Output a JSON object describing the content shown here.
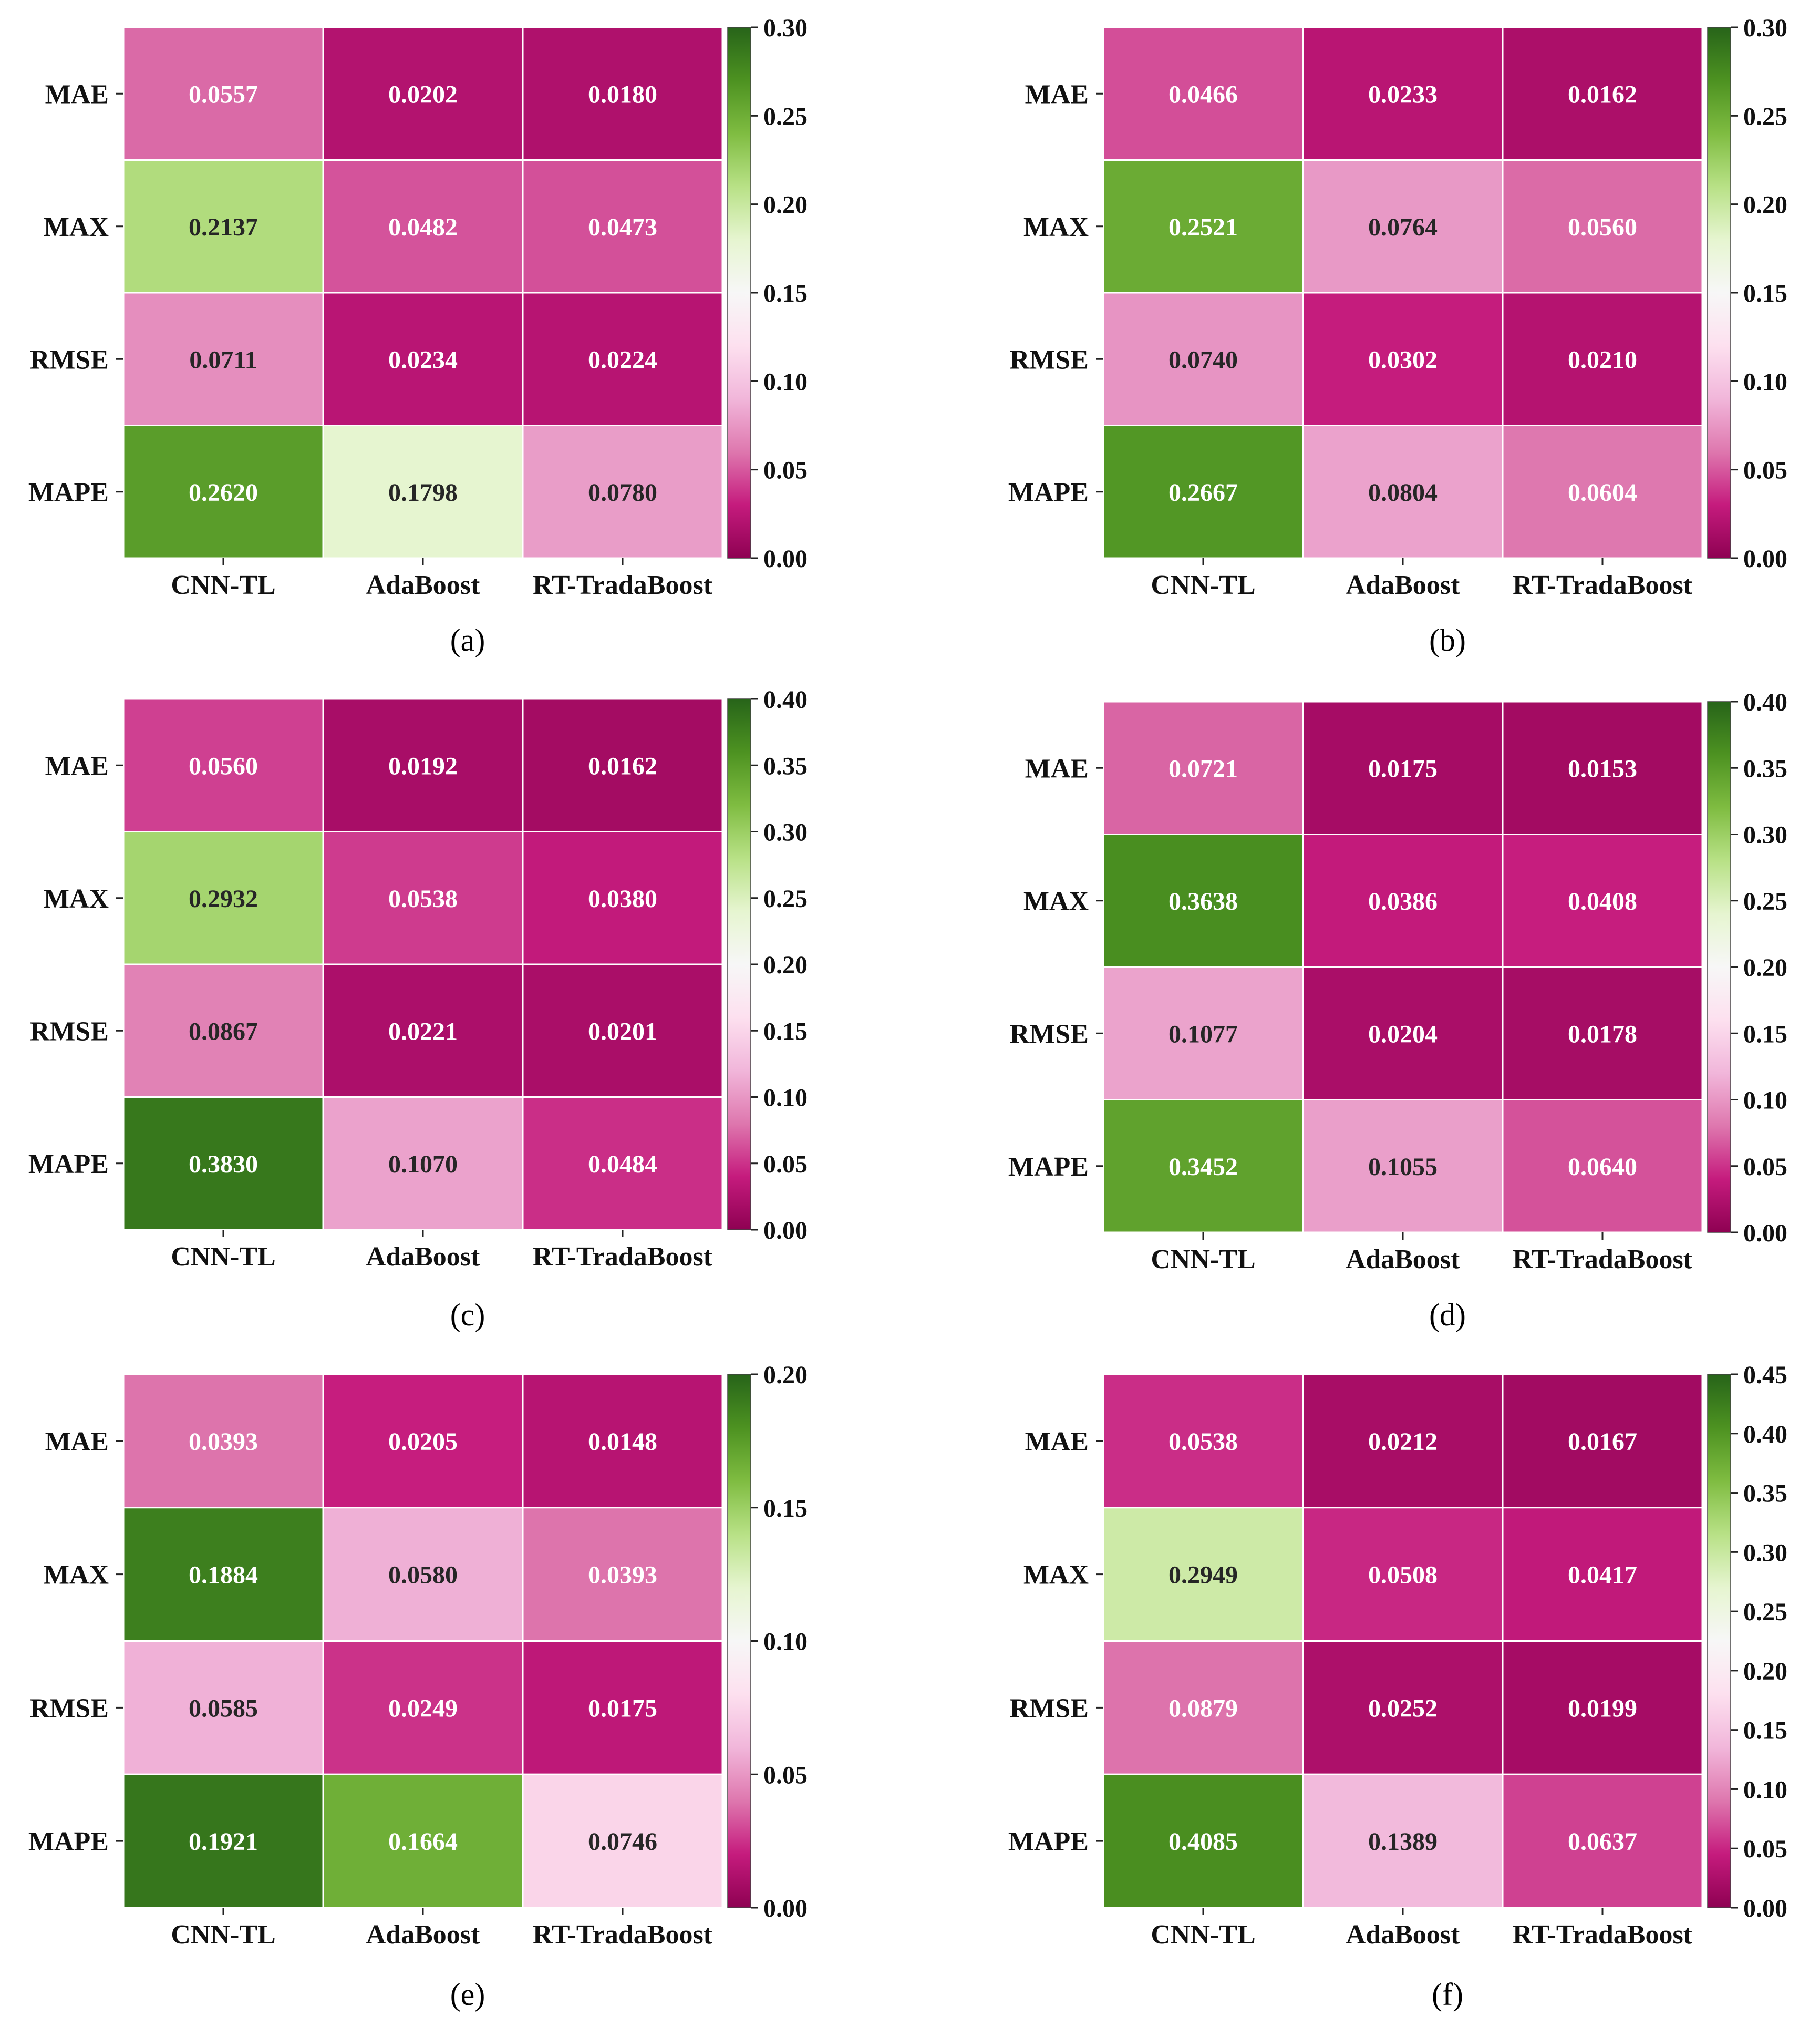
{
  "chart_data": [
    {
      "type": "heatmap",
      "panel_label": "(a)",
      "rows": [
        "MAE",
        "MAX",
        "RMSE",
        "MAPE"
      ],
      "columns": [
        "CNN-TL",
        "AdaBoost",
        "RT-TradaBoost"
      ],
      "values": [
        [
          0.0557,
          0.0202,
          0.018
        ],
        [
          0.2137,
          0.0482,
          0.0473
        ],
        [
          0.0711,
          0.0234,
          0.0224
        ],
        [
          0.262,
          0.1798,
          0.078
        ]
      ],
      "value_labels": [
        [
          "0.0557",
          "0.0202",
          "0.0180"
        ],
        [
          "0.2137",
          "0.0482",
          "0.0473"
        ],
        [
          "0.0711",
          "0.0234",
          "0.0224"
        ],
        [
          "0.2620",
          "0.1798",
          "0.0780"
        ]
      ],
      "colorbar": {
        "range": [
          0,
          0.3
        ],
        "ticks": [
          "0.00",
          "0.05",
          "0.10",
          "0.15",
          "0.20",
          "0.25",
          "0.30"
        ]
      }
    },
    {
      "type": "heatmap",
      "panel_label": "(b)",
      "rows": [
        "MAE",
        "MAX",
        "RMSE",
        "MAPE"
      ],
      "columns": [
        "CNN-TL",
        "AdaBoost",
        "RT-TradaBoost"
      ],
      "values": [
        [
          0.0466,
          0.0233,
          0.0162
        ],
        [
          0.2521,
          0.0764,
          0.056
        ],
        [
          0.074,
          0.0302,
          0.021
        ],
        [
          0.2667,
          0.0804,
          0.0604
        ]
      ],
      "value_labels": [
        [
          "0.0466",
          "0.0233",
          "0.0162"
        ],
        [
          "0.2521",
          "0.0764",
          "0.0560"
        ],
        [
          "0.0740",
          "0.0302",
          "0.0210"
        ],
        [
          "0.2667",
          "0.0804",
          "0.0604"
        ]
      ],
      "colorbar": {
        "range": [
          0,
          0.3
        ],
        "ticks": [
          "0.00",
          "0.05",
          "0.10",
          "0.15",
          "0.20",
          "0.25",
          "0.30"
        ]
      }
    },
    {
      "type": "heatmap",
      "panel_label": "(c)",
      "rows": [
        "MAE",
        "MAX",
        "RMSE",
        "MAPE"
      ],
      "columns": [
        "CNN-TL",
        "AdaBoost",
        "RT-TradaBoost"
      ],
      "values": [
        [
          0.056,
          0.0192,
          0.0162
        ],
        [
          0.2932,
          0.0538,
          0.038
        ],
        [
          0.0867,
          0.0221,
          0.0201
        ],
        [
          0.383,
          0.107,
          0.0484
        ]
      ],
      "value_labels": [
        [
          "0.0560",
          "0.0192",
          "0.0162"
        ],
        [
          "0.2932",
          "0.0538",
          "0.0380"
        ],
        [
          "0.0867",
          "0.0221",
          "0.0201"
        ],
        [
          "0.3830",
          "0.1070",
          "0.0484"
        ]
      ],
      "colorbar": {
        "range": [
          0,
          0.4
        ],
        "ticks": [
          "0.00",
          "0.05",
          "0.10",
          "0.15",
          "0.20",
          "0.25",
          "0.30",
          "0.35",
          "0.40"
        ]
      }
    },
    {
      "type": "heatmap",
      "panel_label": "(d)",
      "rows": [
        "MAE",
        "MAX",
        "RMSE",
        "MAPE"
      ],
      "columns": [
        "CNN-TL",
        "AdaBoost",
        "RT-TradaBoost"
      ],
      "values": [
        [
          0.0721,
          0.0175,
          0.0153
        ],
        [
          0.3638,
          0.0386,
          0.0408
        ],
        [
          0.1077,
          0.0204,
          0.0178
        ],
        [
          0.3452,
          0.1055,
          0.064
        ]
      ],
      "value_labels": [
        [
          "0.0721",
          "0.0175",
          "0.0153"
        ],
        [
          "0.3638",
          "0.0386",
          "0.0408"
        ],
        [
          "0.1077",
          "0.0204",
          "0.0178"
        ],
        [
          "0.3452",
          "0.1055",
          "0.0640"
        ]
      ],
      "colorbar": {
        "range": [
          0,
          0.4
        ],
        "ticks": [
          "0.00",
          "0.05",
          "0.10",
          "0.15",
          "0.20",
          "0.25",
          "0.30",
          "0.35",
          "0.40"
        ]
      }
    },
    {
      "type": "heatmap",
      "panel_label": "(e)",
      "rows": [
        "MAE",
        "MAX",
        "RMSE",
        "MAPE"
      ],
      "columns": [
        "CNN-TL",
        "AdaBoost",
        "RT-TradaBoost"
      ],
      "values": [
        [
          0.0393,
          0.0205,
          0.0148
        ],
        [
          0.1884,
          0.058,
          0.0393
        ],
        [
          0.0585,
          0.0249,
          0.0175
        ],
        [
          0.1921,
          0.1664,
          0.0746
        ]
      ],
      "value_labels": [
        [
          "0.0393",
          "0.0205",
          "0.0148"
        ],
        [
          "0.1884",
          "0.0580",
          "0.0393"
        ],
        [
          "0.0585",
          "0.0249",
          "0.0175"
        ],
        [
          "0.1921",
          "0.1664",
          "0.0746"
        ]
      ],
      "colorbar": {
        "range": [
          0,
          0.2
        ],
        "ticks": [
          "0.00",
          "0.05",
          "0.10",
          "0.15",
          "0.20"
        ]
      }
    },
    {
      "type": "heatmap",
      "panel_label": "(f)",
      "rows": [
        "MAE",
        "MAX",
        "RMSE",
        "MAPE"
      ],
      "columns": [
        "CNN-TL",
        "AdaBoost",
        "RT-TradaBoost"
      ],
      "values": [
        [
          0.0538,
          0.0212,
          0.0167
        ],
        [
          0.2949,
          0.0508,
          0.0417
        ],
        [
          0.0879,
          0.0252,
          0.0199
        ],
        [
          0.4085,
          0.1389,
          0.0637
        ]
      ],
      "value_labels": [
        [
          "0.0538",
          "0.0212",
          "0.0167"
        ],
        [
          "0.2949",
          "0.0508",
          "0.0417"
        ],
        [
          "0.0879",
          "0.0252",
          "0.0199"
        ],
        [
          "0.4085",
          "0.1389",
          "0.0637"
        ]
      ],
      "colorbar": {
        "range": [
          0,
          0.45
        ],
        "ticks": [
          "0.00",
          "0.05",
          "0.10",
          "0.15",
          "0.20",
          "0.25",
          "0.30",
          "0.35",
          "0.40",
          "0.45"
        ]
      }
    }
  ]
}
